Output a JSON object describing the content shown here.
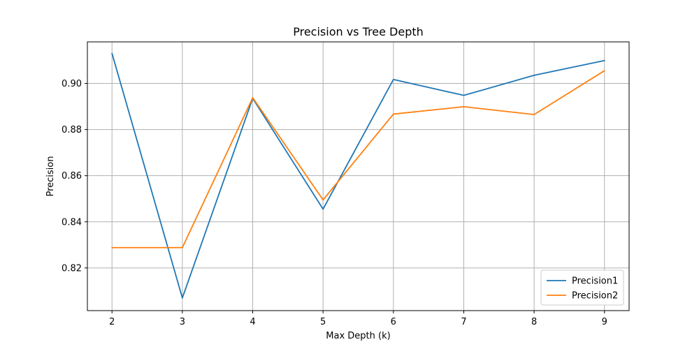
{
  "chart_data": {
    "type": "line",
    "title": "Precision vs Tree Depth",
    "xlabel": "Max Depth (k)",
    "ylabel": "Precision",
    "x": [
      2,
      3,
      4,
      5,
      6,
      7,
      8,
      9
    ],
    "xlim": [
      1.65,
      9.35
    ],
    "ylim": [
      0.8015,
      0.918
    ],
    "xticks": [
      2,
      3,
      4,
      5,
      6,
      7,
      8,
      9
    ],
    "yticks": [
      0.82,
      0.84,
      0.86,
      0.88,
      0.9
    ],
    "ytick_labels": [
      "0.82",
      "0.84",
      "0.86",
      "0.88",
      "0.90"
    ],
    "grid": true,
    "legend_position": "lower-right",
    "series": [
      {
        "name": "Precision1",
        "color": "#1f77b4",
        "values": [
          0.913,
          0.807,
          0.8935,
          0.8455,
          0.9017,
          0.8948,
          0.9035,
          0.9099
        ]
      },
      {
        "name": "Precision2",
        "color": "#ff7f0e",
        "values": [
          0.8288,
          0.8288,
          0.8938,
          0.8495,
          0.8867,
          0.8899,
          0.8865,
          0.9055
        ]
      }
    ]
  }
}
